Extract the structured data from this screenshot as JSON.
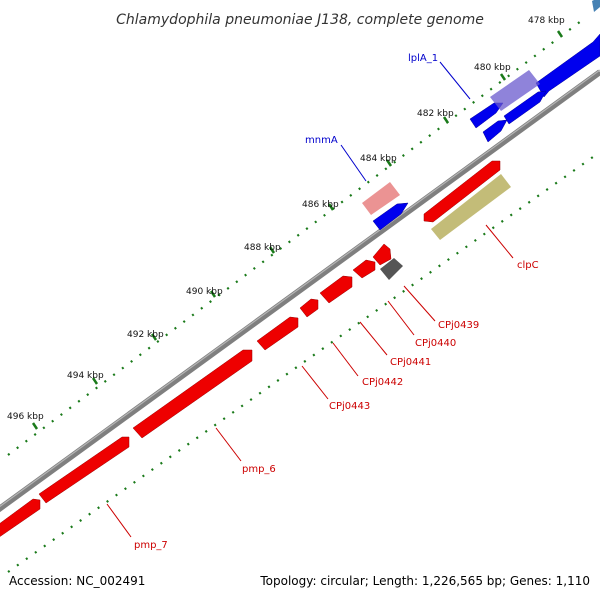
{
  "title": "Chlamydophila pneumoniae J138, complete genome",
  "footer": {
    "accession": "Accession: NC_002491",
    "summary": "Topology: circular; Length: 1,226,565 bp; Genes: 1,110"
  },
  "ticks": [
    {
      "label": "478 kbp"
    },
    {
      "label": "480 kbp"
    },
    {
      "label": "482 kbp"
    },
    {
      "label": "484 kbp"
    },
    {
      "label": "486 kbp"
    },
    {
      "label": "488 kbp"
    },
    {
      "label": "490 kbp"
    },
    {
      "label": "492 kbp"
    },
    {
      "label": "494 kbp"
    },
    {
      "label": "496 kbp"
    }
  ],
  "colors": {
    "backbone": "#7f7f7f",
    "tick": "#1a7a1a",
    "forward_gene": "#0000ee",
    "reverse_gene": "#ee0000",
    "forward_label": "#0000cc",
    "reverse_label": "#cc0000",
    "pseudo_gene": "#555555",
    "trna_forward": "#6a5acd",
    "trna_reverse": "#e88080",
    "misc_feature": "#b8b060"
  },
  "labels": {
    "lplA_1": "lplA_1",
    "mnmA": "mnmA",
    "clpC": "clpC",
    "CPj0439": "CPj0439",
    "CPj0440": "CPj0440",
    "CPj0441": "CPj0441",
    "CPj0442": "CPj0442",
    "CPj0443": "CPj0443",
    "pmp_6": "pmp_6",
    "pmp_7": "pmp_7"
  }
}
